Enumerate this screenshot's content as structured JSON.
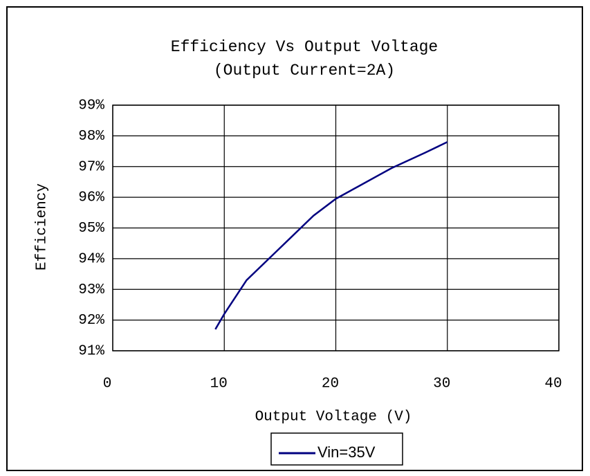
{
  "chart_data": {
    "type": "line",
    "title": "Efficiency Vs Output Voltage",
    "subtitle": "(Output Current=2A)",
    "x_label": "Output Voltage (V)",
    "y_label": "Efficiency",
    "x": [
      9.2,
      10,
      12,
      14,
      16,
      18,
      20,
      22,
      25,
      28,
      30
    ],
    "series": [
      {
        "name": "Vin=35V",
        "color": "#000080",
        "values": [
          91.7,
          92.2,
          93.3,
          94.0,
          94.7,
          95.4,
          95.95,
          96.35,
          96.95,
          97.45,
          97.8
        ]
      }
    ],
    "xlim": [
      0,
      40
    ],
    "xticks": [
      0,
      10,
      20,
      30,
      40
    ],
    "ylim": [
      91,
      99
    ],
    "yticks": [
      {
        "value": 91,
        "label": "91%"
      },
      {
        "value": 92,
        "label": "92%"
      },
      {
        "value": 93,
        "label": "93%"
      },
      {
        "value": 94,
        "label": "94%"
      },
      {
        "value": 95,
        "label": "95%"
      },
      {
        "value": 96,
        "label": "96%"
      },
      {
        "value": 97,
        "label": "97%"
      },
      {
        "value": 98,
        "label": "98%"
      },
      {
        "value": 99,
        "label": "99%"
      }
    ],
    "grid": true,
    "legend": "bottom"
  }
}
